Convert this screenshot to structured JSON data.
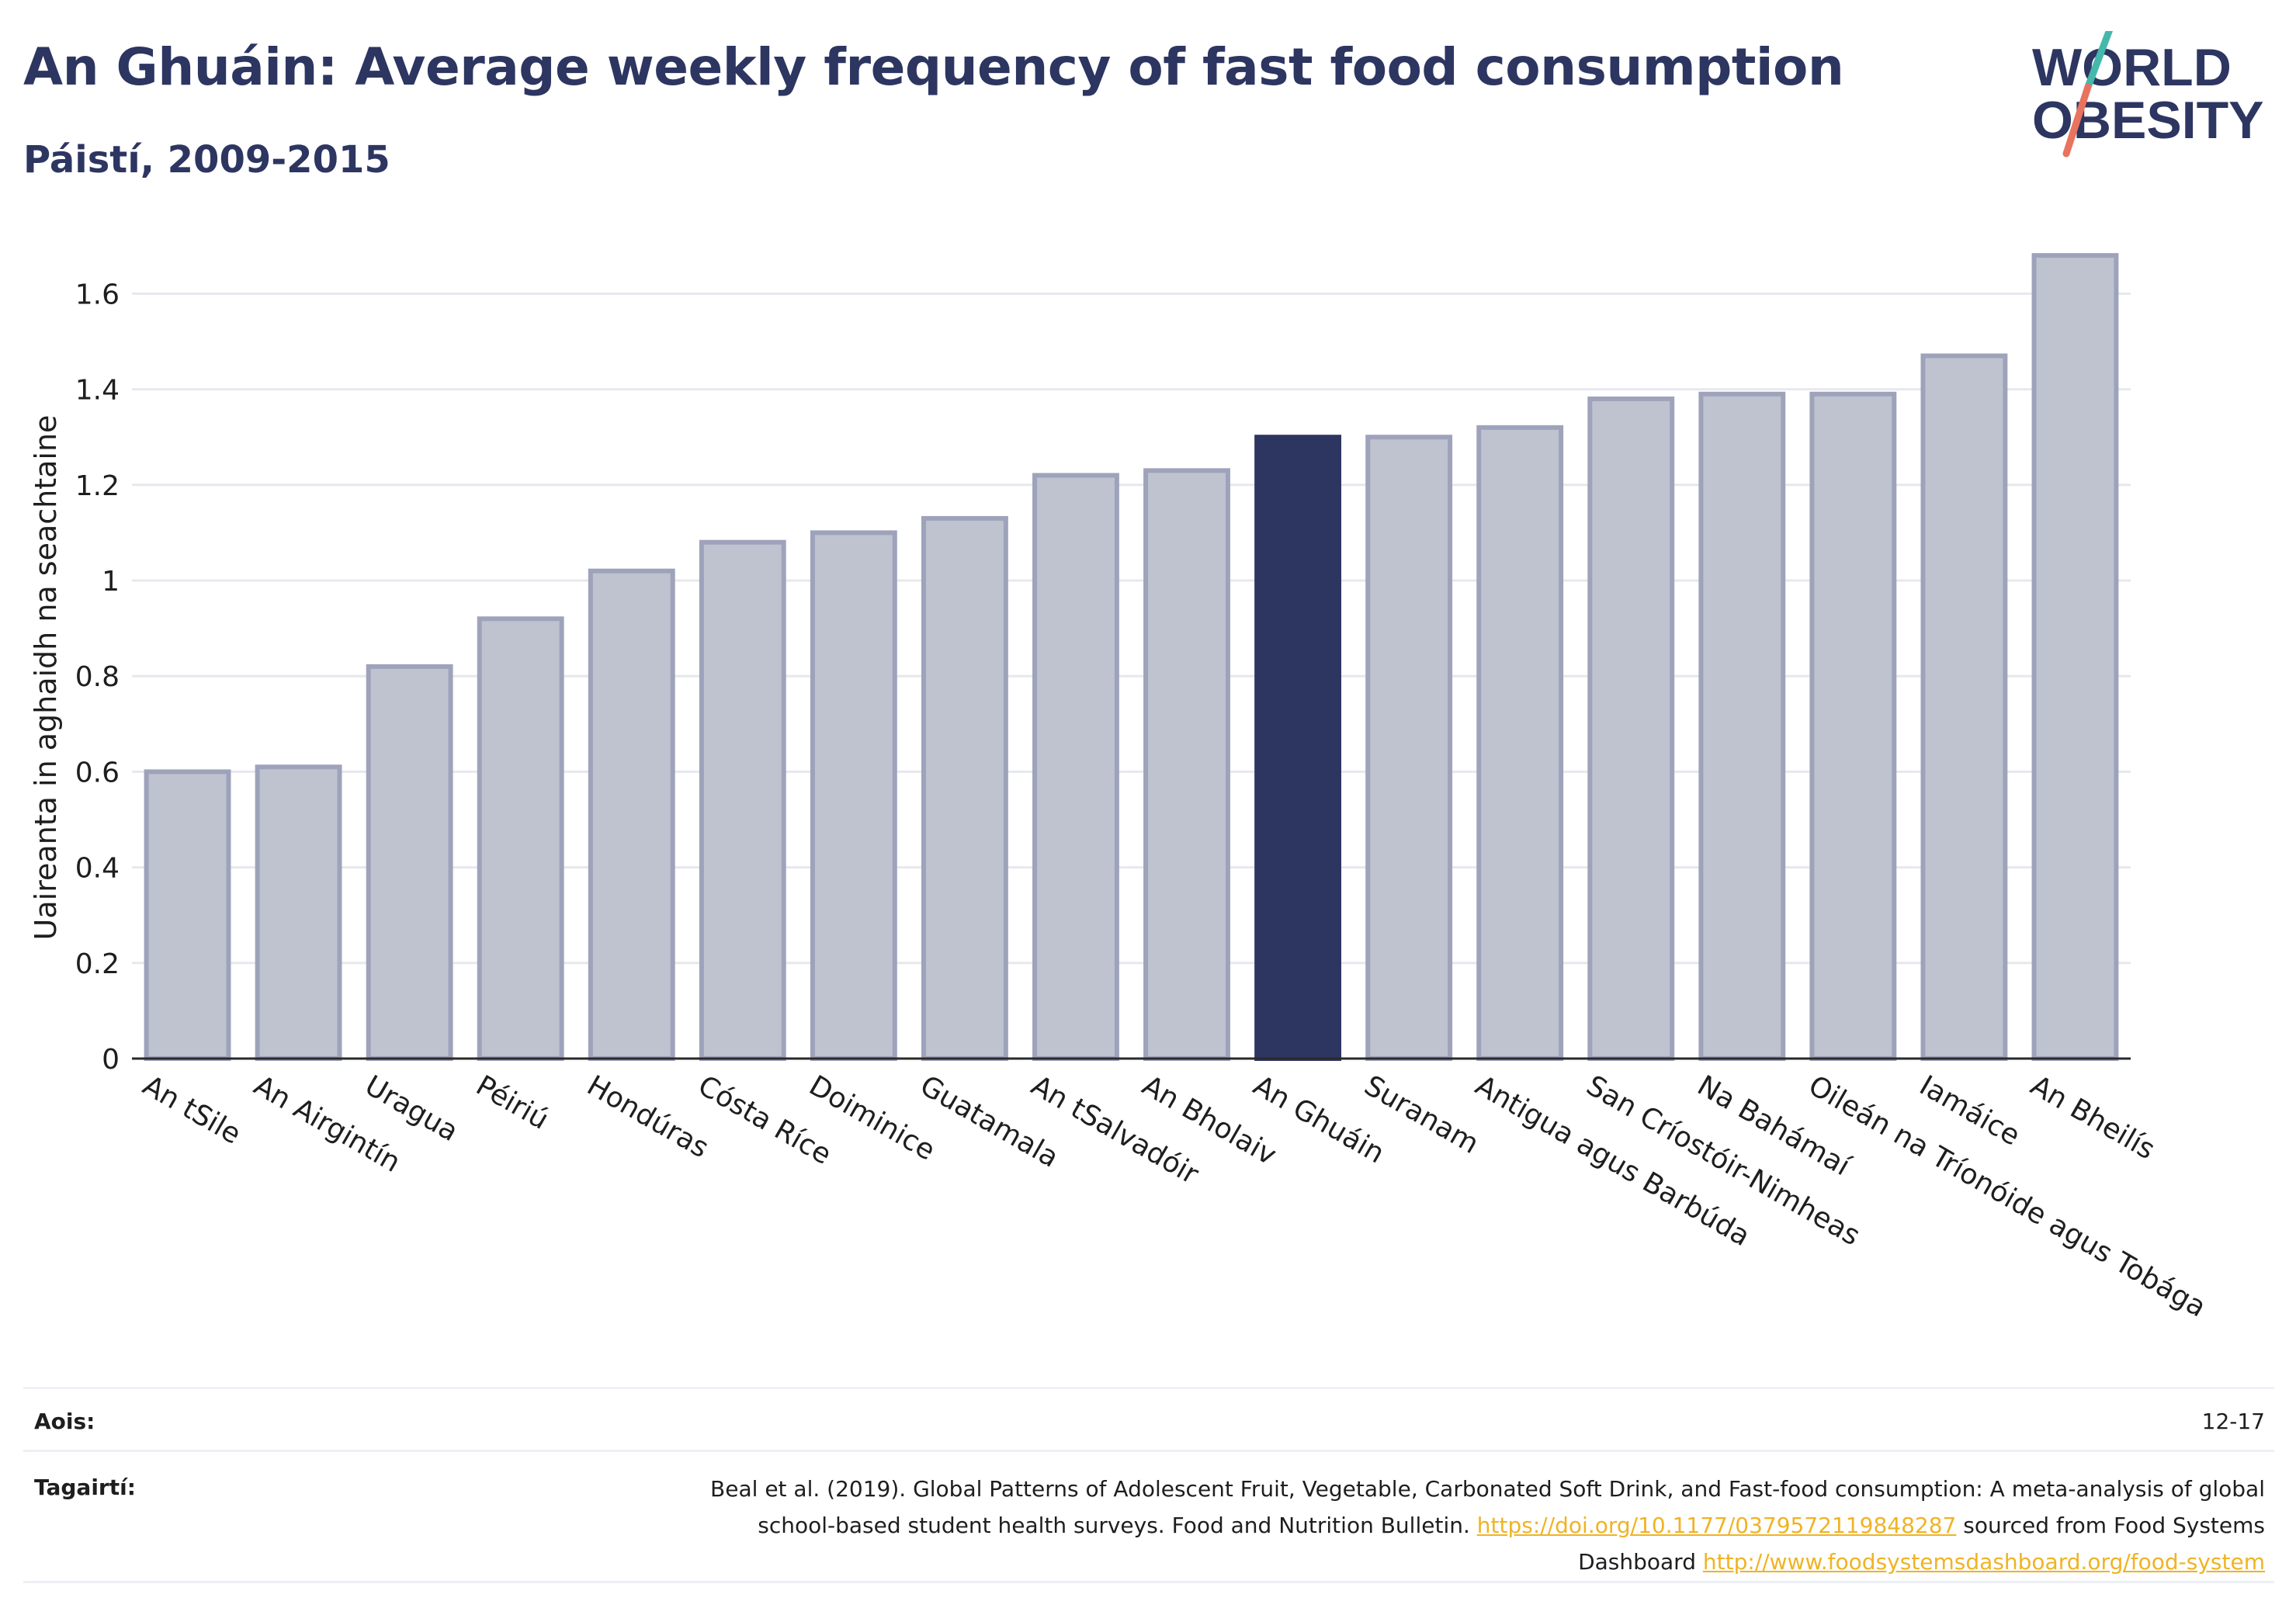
{
  "title": "An Ghuáin: Average weekly frequency of fast food consumption",
  "subtitle": "Páistí, 2009-2015",
  "logo": {
    "line1": "WORLD",
    "line2": "OBESITY"
  },
  "colors": {
    "highlight": "#2d3561",
    "bar": "#bfc3cf",
    "bar_stroke": "#9ea3bb",
    "link": "#f0b324",
    "text": "#2d3561"
  },
  "chart_data": {
    "type": "bar",
    "ylabel": "Uaireanta in aghaidh na seachtaine",
    "xlabel": "",
    "ylim": [
      0,
      1.7
    ],
    "yticks": [
      0,
      0.2,
      0.4,
      0.6,
      0.8,
      1,
      1.2,
      1.4,
      1.6
    ],
    "ytick_labels": [
      "0",
      "0.2",
      "0.4",
      "0.6",
      "0.8",
      "1",
      "1.2",
      "1.4",
      "1.6"
    ],
    "grid": true,
    "highlight": "An Ghuáin",
    "categories": [
      "An tSile",
      "An Airgintín",
      "Uragua",
      "Péiriú",
      "Hondúras",
      "Cósta Ríce",
      "Doiminice",
      "Guatamala",
      "An tSalvadóir",
      "An Bholaiv",
      "An Ghuáin",
      "Suranam",
      "Antigua agus Barbúda",
      "San Críostóir-Nimheas",
      "Na Bahámaí",
      "Oileán na Tríonóide agus Tobága",
      "Iamáice",
      "An Bheilís"
    ],
    "values": [
      0.6,
      0.61,
      0.82,
      0.92,
      1.02,
      1.08,
      1.1,
      1.13,
      1.22,
      1.23,
      1.3,
      1.3,
      1.32,
      1.38,
      1.39,
      1.39,
      1.47,
      1.68
    ]
  },
  "footer": {
    "age_label": "Aois:",
    "age_value": "12-17",
    "ref_label": "Tagairtí:",
    "ref_text1": "Beal et al. (2019). Global Patterns of Adolescent Fruit, Vegetable, Carbonated Soft Drink, and Fast-food consumption: A meta-analysis of global school-based student health surveys. Food and Nutrition Bulletin. ",
    "ref_link1": "https://doi.org/10.1177/0379572119848287",
    "ref_text2": " sourced from Food Systems Dashboard ",
    "ref_link2": "http://www.foodsystemsdashboard.org/food-system"
  }
}
